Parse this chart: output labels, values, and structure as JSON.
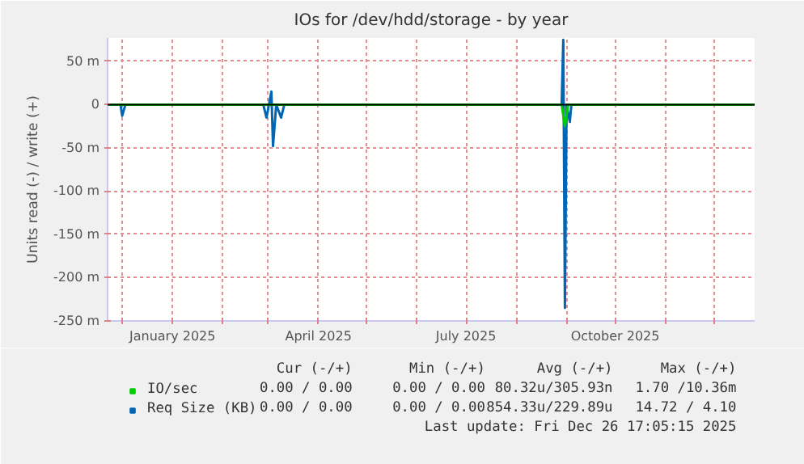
{
  "chart_data": {
    "type": "line",
    "title": "IOs for /dev/hdd/storage - by year",
    "ylabel": "Units read (-) / write (+)",
    "xlim": [
      "2024-11-22",
      "2025-12-26"
    ],
    "xticks": [
      {
        "value": "2024-12-01",
        "label": null
      },
      {
        "value": "2025-01-01",
        "label": "January 2025"
      },
      {
        "value": "2025-02-01",
        "label": null
      },
      {
        "value": "2025-03-01",
        "label": null
      },
      {
        "value": "2025-04-01",
        "label": "April 2025"
      },
      {
        "value": "2025-05-01",
        "label": null
      },
      {
        "value": "2025-06-01",
        "label": null
      },
      {
        "value": "2025-07-01",
        "label": "July 2025"
      },
      {
        "value": "2025-08-01",
        "label": null
      },
      {
        "value": "2025-09-01",
        "label": null
      },
      {
        "value": "2025-10-01",
        "label": "October 2025"
      },
      {
        "value": "2025-11-01",
        "label": null
      },
      {
        "value": "2025-12-01",
        "label": null
      }
    ],
    "ylim": [
      -250,
      77
    ],
    "yticks": [
      {
        "value": -250,
        "label": "-250 m"
      },
      {
        "value": -200,
        "label": "-200 m"
      },
      {
        "value": -150,
        "label": "-150 m"
      },
      {
        "value": -100,
        "label": "-100 m"
      },
      {
        "value": -50,
        "label": "-50 m"
      },
      0,
      {
        "value": 50,
        "label": "50 m"
      }
    ],
    "grid": true,
    "legend": "bottom left",
    "series": [
      {
        "name": "IO/sec",
        "color": "#00cc00",
        "x": [
          "2024-11-22",
          "2025-08-29",
          "2025-08-31",
          "2025-09-02",
          "2025-12-26"
        ],
        "values": [
          0,
          0,
          -25,
          0,
          0
        ]
      },
      {
        "name": "Req Size (KB)",
        "color": "#0066b3",
        "x": [
          "2024-11-22",
          "2024-11-30",
          "2024-12-01",
          "2024-12-03",
          "2025-02-26",
          "2025-02-28",
          "2025-03-03",
          "2025-03-04",
          "2025-03-06",
          "2025-03-09",
          "2025-03-11",
          "2025-08-29",
          "2025-08-30",
          "2025-08-31",
          "2025-09-01",
          "2025-09-03",
          "2025-09-04",
          "2025-12-26"
        ],
        "values": [
          0,
          0,
          -13,
          0,
          0,
          -15,
          15,
          -48,
          0,
          -15,
          0,
          0,
          75,
          -235,
          0,
          -20,
          0,
          0
        ]
      }
    ],
    "ref_lines": [
      {
        "axis": "y",
        "value": 0,
        "color": "#000000"
      }
    ],
    "annotations": [
      "Cur (-/+)",
      "Min (-/+)",
      "Avg (-/+)",
      "Max (-/+)",
      "0.00 / 0.00",
      "0.00 / 0.00",
      "80.32u/305.93n",
      "1.70 /10.36m",
      "0.00 / 0.00",
      "0.00 / 0.00",
      "854.33u/229.89u",
      "14.72 / 4.10",
      "Last update: Fri Dec 26 17:05:15 2025"
    ]
  }
}
